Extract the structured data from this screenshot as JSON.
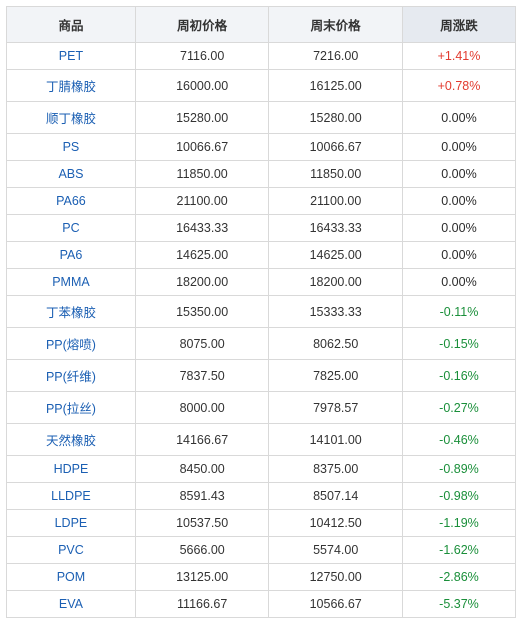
{
  "columns": [
    "商品",
    "周初价格",
    "周末价格",
    "周涨跌"
  ],
  "colors": {
    "up": "#e23b2f",
    "zero": "#2b2b2b",
    "down": "#1a8f3a"
  },
  "rows": [
    {
      "product": "PET",
      "start": "7116.00",
      "end": "7216.00",
      "change": "+1.41%",
      "dir": "up"
    },
    {
      "product": "丁腈橡胶",
      "start": "16000.00",
      "end": "16125.00",
      "change": "+0.78%",
      "dir": "up"
    },
    {
      "product": "顺丁橡胶",
      "start": "15280.00",
      "end": "15280.00",
      "change": "0.00%",
      "dir": "zero"
    },
    {
      "product": "PS",
      "start": "10066.67",
      "end": "10066.67",
      "change": "0.00%",
      "dir": "zero"
    },
    {
      "product": "ABS",
      "start": "11850.00",
      "end": "11850.00",
      "change": "0.00%",
      "dir": "zero"
    },
    {
      "product": "PA66",
      "start": "21100.00",
      "end": "21100.00",
      "change": "0.00%",
      "dir": "zero"
    },
    {
      "product": "PC",
      "start": "16433.33",
      "end": "16433.33",
      "change": "0.00%",
      "dir": "zero"
    },
    {
      "product": "PA6",
      "start": "14625.00",
      "end": "14625.00",
      "change": "0.00%",
      "dir": "zero"
    },
    {
      "product": "PMMA",
      "start": "18200.00",
      "end": "18200.00",
      "change": "0.00%",
      "dir": "zero"
    },
    {
      "product": "丁苯橡胶",
      "start": "15350.00",
      "end": "15333.33",
      "change": "-0.11%",
      "dir": "down"
    },
    {
      "product": "PP(熔喷)",
      "start": "8075.00",
      "end": "8062.50",
      "change": "-0.15%",
      "dir": "down"
    },
    {
      "product": "PP(纤维)",
      "start": "7837.50",
      "end": "7825.00",
      "change": "-0.16%",
      "dir": "down"
    },
    {
      "product": "PP(拉丝)",
      "start": "8000.00",
      "end": "7978.57",
      "change": "-0.27%",
      "dir": "down"
    },
    {
      "product": "天然橡胶",
      "start": "14166.67",
      "end": "14101.00",
      "change": "-0.46%",
      "dir": "down"
    },
    {
      "product": "HDPE",
      "start": "8450.00",
      "end": "8375.00",
      "change": "-0.89%",
      "dir": "down"
    },
    {
      "product": "LLDPE",
      "start": "8591.43",
      "end": "8507.14",
      "change": "-0.98%",
      "dir": "down"
    },
    {
      "product": "LDPE",
      "start": "10537.50",
      "end": "10412.50",
      "change": "-1.19%",
      "dir": "down"
    },
    {
      "product": "PVC",
      "start": "5666.00",
      "end": "5574.00",
      "change": "-1.62%",
      "dir": "down"
    },
    {
      "product": "POM",
      "start": "13125.00",
      "end": "12750.00",
      "change": "-2.86%",
      "dir": "down"
    },
    {
      "product": "EVA",
      "start": "11166.67",
      "end": "10566.67",
      "change": "-5.37%",
      "dir": "down"
    }
  ]
}
